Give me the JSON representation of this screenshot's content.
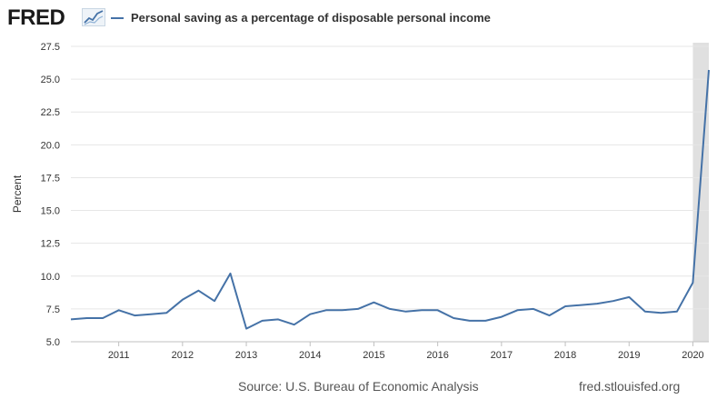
{
  "header": {
    "logo_text": "FRED",
    "logo_icon": "chart-trend-icon"
  },
  "colors": {
    "series": "#4572a7",
    "grid": "#e6e6e6",
    "recession": "#e0e0e0",
    "axis_text": "#333333"
  },
  "chart_data": {
    "type": "line",
    "title": "Personal saving as a percentage of disposable personal income",
    "xlabel": "",
    "ylabel": "Percent",
    "ylim": [
      5.0,
      27.5
    ],
    "xlim": [
      2010.25,
      2020.25
    ],
    "grid": true,
    "legend": "top-left",
    "y_ticks": [
      "5.0",
      "7.5",
      "10.0",
      "12.5",
      "15.0",
      "17.5",
      "20.0",
      "22.5",
      "25.0",
      "27.5"
    ],
    "x_ticks": [
      "2011",
      "2012",
      "2013",
      "2014",
      "2015",
      "2016",
      "2017",
      "2018",
      "2019",
      "2020"
    ],
    "recession_shading": [
      2020.0,
      2020.25
    ],
    "series": [
      {
        "name": "Personal saving as a percentage of disposable personal income",
        "x": [
          2010.25,
          2010.5,
          2010.75,
          2011.0,
          2011.25,
          2011.5,
          2011.75,
          2012.0,
          2012.25,
          2012.5,
          2012.75,
          2013.0,
          2013.25,
          2013.5,
          2013.75,
          2014.0,
          2014.25,
          2014.5,
          2014.75,
          2015.0,
          2015.25,
          2015.5,
          2015.75,
          2016.0,
          2016.25,
          2016.5,
          2016.75,
          2017.0,
          2017.25,
          2017.5,
          2017.75,
          2018.0,
          2018.25,
          2018.5,
          2018.75,
          2019.0,
          2019.25,
          2019.5,
          2019.75,
          2020.0,
          2020.25
        ],
        "values": [
          6.7,
          6.8,
          6.8,
          7.4,
          7.0,
          7.1,
          7.2,
          8.2,
          8.9,
          8.1,
          10.2,
          6.0,
          6.6,
          6.7,
          6.3,
          7.1,
          7.4,
          7.4,
          7.5,
          8.0,
          7.5,
          7.3,
          7.4,
          7.4,
          6.8,
          6.6,
          6.6,
          6.9,
          7.4,
          7.5,
          7.0,
          7.7,
          7.8,
          7.9,
          8.1,
          8.4,
          7.3,
          7.2,
          7.3,
          9.5,
          25.7
        ]
      }
    ]
  },
  "footer": {
    "source": "Source: U.S. Bureau of Economic Analysis",
    "url": "fred.stlouisfed.org"
  }
}
